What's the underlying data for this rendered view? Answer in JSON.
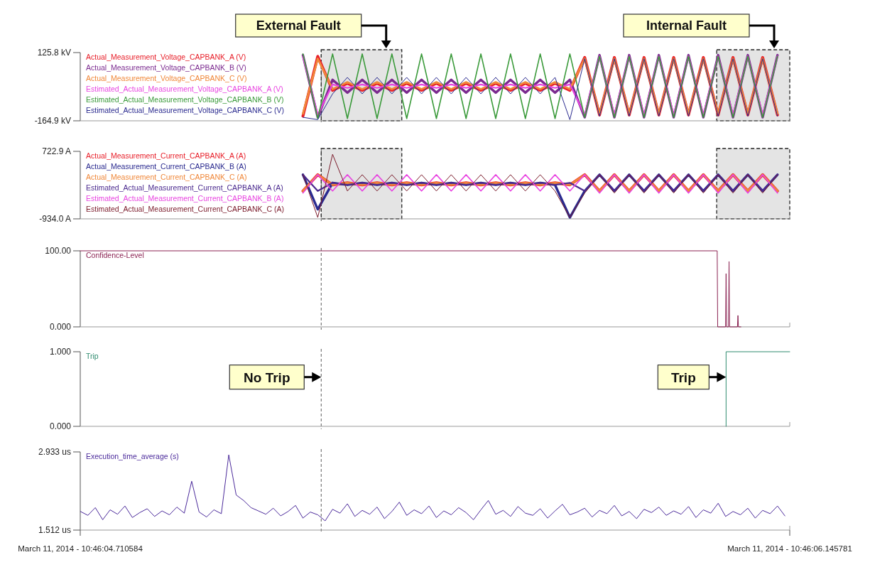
{
  "chart_data": [
    {
      "type": "line",
      "xlim": [
        "2014-03-11T10:46:04.710584",
        "2014-03-11T10:46:06.145781"
      ],
      "ylim": [
        -164.9,
        125.8
      ],
      "yticks": [
        {
          "value": 125.8,
          "label": "125.8 kV"
        },
        {
          "value": -164.9,
          "label": "-164.9 kV"
        }
      ],
      "tick_labels": "y",
      "legend": "top left",
      "x": [
        "2014-03-11T10:46:05.161",
        "2014-03-11T10:46:05.191",
        "2014-03-11T10:46:05.221",
        "2014-03-11T10:46:05.251",
        "2014-03-11T10:46:05.281",
        "2014-03-11T10:46:05.311",
        "2014-03-11T10:46:05.341",
        "2014-03-11T10:46:05.371",
        "2014-03-11T10:46:05.401",
        "2014-03-11T10:46:05.431",
        "2014-03-11T10:46:05.461",
        "2014-03-11T10:46:05.491",
        "2014-03-11T10:46:05.521",
        "2014-03-11T10:46:05.551",
        "2014-03-11T10:46:05.581",
        "2014-03-11T10:46:05.611",
        "2014-03-11T10:46:05.641",
        "2014-03-11T10:46:05.671",
        "2014-03-11T10:46:05.701",
        "2014-03-11T10:46:05.731",
        "2014-03-11T10:46:05.761",
        "2014-03-11T10:46:05.791",
        "2014-03-11T10:46:05.821",
        "2014-03-11T10:46:05.851",
        "2014-03-11T10:46:05.881",
        "2014-03-11T10:46:05.911",
        "2014-03-11T10:46:05.941",
        "2014-03-11T10:46:05.971",
        "2014-03-11T10:46:06.001",
        "2014-03-11T10:46:06.031",
        "2014-03-11T10:46:06.061",
        "2014-03-11T10:46:06.091",
        "2014-03-11T10:46:06.121"
      ],
      "series": [
        {
          "name": "Actual_Measurement_Voltage_CAPBANK_A (V)",
          "color": "#e8202a",
          "values": [
            -145,
            110,
            -35,
            -5,
            -35,
            -5,
            -35,
            -5,
            -35,
            -5,
            -35,
            -5,
            -35,
            -5,
            -35,
            -5,
            -35,
            -5,
            -35,
            105,
            -140,
            105,
            -140,
            105,
            -140,
            105,
            -140,
            105,
            -140,
            105,
            -140,
            105,
            -140
          ]
        },
        {
          "name": "Actual_Measurement_Voltage_CAPBANK_B (V)",
          "color": "#7b2a8f",
          "values": [
            115,
            -150,
            10,
            -45,
            10,
            -45,
            10,
            -45,
            10,
            -45,
            10,
            -45,
            10,
            -45,
            10,
            -45,
            10,
            -45,
            10,
            -150,
            115,
            -150,
            115,
            -150,
            115,
            -150,
            115,
            -150,
            115,
            -150,
            115,
            -150,
            115
          ]
        },
        {
          "name": "Actual_Measurement_Voltage_CAPBANK_C (V)",
          "color": "#f0883a",
          "values": [
            -135,
            100,
            -30,
            0,
            -30,
            0,
            -30,
            0,
            -30,
            0,
            -30,
            0,
            -30,
            0,
            -30,
            0,
            -30,
            0,
            -30,
            100,
            -135,
            100,
            -135,
            100,
            -135,
            100,
            -135,
            100,
            -135,
            100,
            -135,
            100,
            -135
          ]
        },
        {
          "name": "Estimated_Actual_Measurement_Voltage_CAPBANK_A (V)",
          "color": "#e845e0",
          "values": [
            110,
            -140,
            -10,
            -25,
            -10,
            -25,
            -10,
            -25,
            -10,
            -25,
            -10,
            -25,
            -10,
            -25,
            -10,
            -25,
            -10,
            -25,
            -10,
            -140,
            110,
            -140,
            110,
            -140,
            110,
            -140,
            110,
            -140,
            110,
            -140,
            110,
            -140,
            110
          ]
        },
        {
          "name": "Estimated_Actual_Measurement_Voltage_CAPBANK_B (V)",
          "color": "#3a9a3a",
          "values": [
            120,
            -155,
            120,
            -155,
            120,
            -155,
            120,
            -155,
            120,
            -155,
            120,
            -155,
            120,
            -155,
            120,
            -155,
            120,
            -155,
            120,
            -150,
            110,
            -150,
            110,
            -150,
            110,
            -150,
            110,
            -150,
            110,
            -150,
            110,
            -150,
            110
          ]
        },
        {
          "name": "Estimated_Actual_Measurement_Voltage_CAPBANK_C (V)",
          "color": "#2a2a8f",
          "values": [
            -150,
            -160,
            -50,
            20,
            -50,
            20,
            -50,
            20,
            -50,
            20,
            -50,
            20,
            -50,
            20,
            -50,
            20,
            -50,
            20,
            -160,
            100,
            -145,
            100,
            -145,
            100,
            -145,
            100,
            -145,
            100,
            -145,
            100,
            -145,
            100,
            -145
          ]
        }
      ],
      "bands": [
        {
          "axis": "x",
          "from": "2014-03-11T10:46:05.198",
          "to": "2014-03-11T10:46:05.361",
          "label": "External Fault"
        },
        {
          "axis": "x",
          "from": "2014-03-11T10:46:05.998",
          "to": "2014-03-11T10:46:06.145781",
          "label": "Internal Fault"
        }
      ],
      "ref_lines": [
        {
          "axis": "x",
          "value": "2014-03-11T10:46:05.198"
        }
      ]
    },
    {
      "type": "line",
      "xlim": [
        "2014-03-11T10:46:04.710584",
        "2014-03-11T10:46:06.145781"
      ],
      "ylim": [
        -934.0,
        722.9
      ],
      "yticks": [
        {
          "value": 722.9,
          "label": "722.9 A"
        },
        {
          "value": -934.0,
          "label": "-934.0 A"
        }
      ],
      "tick_labels": "y",
      "legend": "top left",
      "x": [
        "2014-03-11T10:46:05.161",
        "2014-03-11T10:46:05.191",
        "2014-03-11T10:46:05.221",
        "2014-03-11T10:46:05.251",
        "2014-03-11T10:46:05.281",
        "2014-03-11T10:46:05.311",
        "2014-03-11T10:46:05.341",
        "2014-03-11T10:46:05.371",
        "2014-03-11T10:46:05.401",
        "2014-03-11T10:46:05.431",
        "2014-03-11T10:46:05.461",
        "2014-03-11T10:46:05.491",
        "2014-03-11T10:46:05.521",
        "2014-03-11T10:46:05.551",
        "2014-03-11T10:46:05.581",
        "2014-03-11T10:46:05.611",
        "2014-03-11T10:46:05.641",
        "2014-03-11T10:46:05.671",
        "2014-03-11T10:46:05.701",
        "2014-03-11T10:46:05.731",
        "2014-03-11T10:46:05.761",
        "2014-03-11T10:46:05.791",
        "2014-03-11T10:46:05.821",
        "2014-03-11T10:46:05.851",
        "2014-03-11T10:46:05.881",
        "2014-03-11T10:46:05.911",
        "2014-03-11T10:46:05.941",
        "2014-03-11T10:46:05.971",
        "2014-03-11T10:46:06.001",
        "2014-03-11T10:46:06.031",
        "2014-03-11T10:46:06.061",
        "2014-03-11T10:46:06.091",
        "2014-03-11T10:46:06.121"
      ],
      "series": [
        {
          "name": "Actual_Measurement_Current_CAPBANK_A (A)",
          "color": "#e8202a",
          "values": [
            -250,
            150,
            -100,
            -50,
            -100,
            -50,
            -100,
            -50,
            -100,
            -50,
            -100,
            -50,
            -100,
            -50,
            -100,
            -50,
            -100,
            -50,
            -100,
            150,
            -250,
            150,
            -250,
            150,
            -250,
            150,
            -250,
            150,
            -250,
            150,
            -250,
            150,
            -250
          ]
        },
        {
          "name": "Actual_Measurement_Current_CAPBANK_B (A)",
          "color": "#2a2a8f",
          "values": [
            150,
            -700,
            -50,
            -100,
            -50,
            -100,
            -50,
            -100,
            -50,
            -100,
            -50,
            -100,
            -50,
            -100,
            -50,
            -100,
            -50,
            -100,
            -900,
            -250,
            150,
            -250,
            150,
            -250,
            150,
            -250,
            150,
            -250,
            150,
            -250,
            150,
            -250,
            150
          ]
        },
        {
          "name": "Actual_Measurement_Current_CAPBANK_C (A)",
          "color": "#f0883a",
          "values": [
            -250,
            150,
            -100,
            -50,
            -100,
            -50,
            -100,
            -50,
            -100,
            -50,
            -100,
            -50,
            -100,
            -50,
            -100,
            -50,
            -100,
            -50,
            -100,
            150,
            -250,
            150,
            -250,
            150,
            -250,
            150,
            -250,
            150,
            -250,
            150,
            -250,
            150,
            -250
          ]
        },
        {
          "name": "Estimated_Actual_Measurement_Current_CAPBANK_A (A)",
          "color": "#4b2a8f",
          "values": [
            150,
            -250,
            -50,
            -100,
            -50,
            -100,
            -50,
            -100,
            -50,
            -100,
            -50,
            -100,
            -50,
            -100,
            -50,
            -100,
            -50,
            -100,
            -50,
            -250,
            150,
            -250,
            150,
            -250,
            150,
            -250,
            150,
            -250,
            150,
            -250,
            150,
            -250,
            150
          ]
        },
        {
          "name": "Estimated_Actual_Measurement_Current_CAPBANK_B (A)",
          "color": "#e845e0",
          "values": [
            -300,
            150,
            -250,
            150,
            -250,
            150,
            -250,
            150,
            -250,
            150,
            -250,
            150,
            -250,
            150,
            -250,
            150,
            -250,
            150,
            -250,
            150,
            -300,
            150,
            -300,
            150,
            -300,
            150,
            -300,
            150,
            -300,
            150,
            -300,
            150,
            -300
          ]
        },
        {
          "name": "Estimated_Actual_Measurement_Current_CAPBANK_C (A)",
          "color": "#7a1a2a",
          "values": [
            150,
            -900,
            650,
            -250,
            150,
            -250,
            150,
            -250,
            150,
            -250,
            150,
            -250,
            150,
            -250,
            150,
            -250,
            150,
            -250,
            -900,
            -300,
            150,
            -300,
            150,
            -300,
            150,
            -300,
            150,
            -300,
            150,
            -300,
            150,
            -300,
            150
          ]
        }
      ],
      "bands": [
        {
          "axis": "x",
          "from": "2014-03-11T10:46:05.198",
          "to": "2014-03-11T10:46:05.361"
        },
        {
          "axis": "x",
          "from": "2014-03-11T10:46:05.998",
          "to": "2014-03-11T10:46:06.145781"
        }
      ],
      "ref_lines": [
        {
          "axis": "x",
          "value": "2014-03-11T10:46:05.198"
        }
      ]
    },
    {
      "type": "line",
      "xlim": [
        "2014-03-11T10:46:04.710584",
        "2014-03-11T10:46:06.145781"
      ],
      "ylim": [
        0,
        100
      ],
      "yticks": [
        {
          "value": 100,
          "label": "100.00"
        },
        {
          "value": 0,
          "label": "0.000"
        }
      ],
      "tick_labels": "y",
      "legend": "top left",
      "series": [
        {
          "name": "Confidence-Level",
          "color": "#8b2252",
          "x": [
            "2014-03-11T10:46:04.710584",
            "2014-03-11T10:46:05.999",
            "2014-03-11T10:46:06.000",
            "2014-03-11T10:46:06.016",
            "2014-03-11T10:46:06.017",
            "2014-03-11T10:46:06.018",
            "2014-03-11T10:46:06.022",
            "2014-03-11T10:46:06.023",
            "2014-03-11T10:46:06.024",
            "2014-03-11T10:46:06.040",
            "2014-03-11T10:46:06.041",
            "2014-03-11T10:46:06.042",
            "2014-03-11T10:46:06.047"
          ],
          "values": [
            100,
            100,
            0,
            0,
            70,
            0,
            0,
            86,
            0,
            0,
            15,
            0,
            0
          ]
        }
      ],
      "ref_lines": [
        {
          "axis": "x",
          "value": "2014-03-11T10:46:05.198"
        }
      ]
    },
    {
      "type": "line",
      "xlim": [
        "2014-03-11T10:46:04.710584",
        "2014-03-11T10:46:06.145781"
      ],
      "ylim": [
        0,
        1
      ],
      "yticks": [
        {
          "value": 1,
          "label": "1.000"
        },
        {
          "value": 0,
          "label": "0.000"
        }
      ],
      "tick_labels": "y",
      "legend": "top left",
      "series": [
        {
          "name": "Trip",
          "color": "#2e8b6e",
          "x": [
            "2014-03-11T10:46:06.017",
            "2014-03-11T10:46:06.017",
            "2014-03-11T10:46:06.145781"
          ],
          "values": [
            0,
            1,
            1
          ]
        }
      ],
      "ref_lines": [
        {
          "axis": "x",
          "value": "2014-03-11T10:46:05.198"
        }
      ],
      "annotations": [
        {
          "text": "No Trip",
          "x": "2014-03-11T10:46:05.198",
          "y": 0.66
        },
        {
          "text": "Trip",
          "x": "2014-03-11T10:46:06.017",
          "y": 0.66
        }
      ]
    },
    {
      "type": "line",
      "xlim": [
        "2014-03-11T10:46:04.710584",
        "2014-03-11T10:46:06.145781"
      ],
      "ylim": [
        1.512,
        2.933
      ],
      "yticks": [
        {
          "value": 2.933,
          "label": "2.933 us"
        },
        {
          "value": 1.512,
          "label": "1.512 us"
        }
      ],
      "xticks": [
        {
          "value": "2014-03-11T10:46:04.710584",
          "label": "March 11, 2014 - 10:46:04.710584"
        },
        {
          "value": "2014-03-11T10:46:06.145781",
          "label": "March 11, 2014 - 10:46:06.145781"
        }
      ],
      "legend": "top left",
      "x": [
        "2014-03-11T10:46:04.711",
        "2014-03-11T10:46:04.726",
        "2014-03-11T10:46:04.741",
        "2014-03-11T10:46:04.756",
        "2014-03-11T10:46:04.771",
        "2014-03-11T10:46:04.786",
        "2014-03-11T10:46:04.801",
        "2014-03-11T10:46:04.816",
        "2014-03-11T10:46:04.831",
        "2014-03-11T10:46:04.846",
        "2014-03-11T10:46:04.861",
        "2014-03-11T10:46:04.876",
        "2014-03-11T10:46:04.891",
        "2014-03-11T10:46:04.906",
        "2014-03-11T10:46:04.921",
        "2014-03-11T10:46:04.936",
        "2014-03-11T10:46:04.951",
        "2014-03-11T10:46:04.966",
        "2014-03-11T10:46:04.981",
        "2014-03-11T10:46:04.996",
        "2014-03-11T10:46:05.011",
        "2014-03-11T10:46:05.026",
        "2014-03-11T10:46:05.041",
        "2014-03-11T10:46:05.056",
        "2014-03-11T10:46:05.071",
        "2014-03-11T10:46:05.086",
        "2014-03-11T10:46:05.101",
        "2014-03-11T10:46:05.116",
        "2014-03-11T10:46:05.131",
        "2014-03-11T10:46:05.146",
        "2014-03-11T10:46:05.161",
        "2014-03-11T10:46:05.176",
        "2014-03-11T10:46:05.191",
        "2014-03-11T10:46:05.206",
        "2014-03-11T10:46:05.221",
        "2014-03-11T10:46:05.236",
        "2014-03-11T10:46:05.251",
        "2014-03-11T10:46:05.266",
        "2014-03-11T10:46:05.281",
        "2014-03-11T10:46:05.296",
        "2014-03-11T10:46:05.311",
        "2014-03-11T10:46:05.326",
        "2014-03-11T10:46:05.341",
        "2014-03-11T10:46:05.356",
        "2014-03-11T10:46:05.371",
        "2014-03-11T10:46:05.386",
        "2014-03-11T10:46:05.401",
        "2014-03-11T10:46:05.416",
        "2014-03-11T10:46:05.431",
        "2014-03-11T10:46:05.446",
        "2014-03-11T10:46:05.461",
        "2014-03-11T10:46:05.476",
        "2014-03-11T10:46:05.491",
        "2014-03-11T10:46:05.506",
        "2014-03-11T10:46:05.521",
        "2014-03-11T10:46:05.536",
        "2014-03-11T10:46:05.551",
        "2014-03-11T10:46:05.566",
        "2014-03-11T10:46:05.581",
        "2014-03-11T10:46:05.596",
        "2014-03-11T10:46:05.611",
        "2014-03-11T10:46:05.626",
        "2014-03-11T10:46:05.641",
        "2014-03-11T10:46:05.656",
        "2014-03-11T10:46:05.671",
        "2014-03-11T10:46:05.686",
        "2014-03-11T10:46:05.701",
        "2014-03-11T10:46:05.716",
        "2014-03-11T10:46:05.731",
        "2014-03-11T10:46:05.746",
        "2014-03-11T10:46:05.761",
        "2014-03-11T10:46:05.776",
        "2014-03-11T10:46:05.791",
        "2014-03-11T10:46:05.806",
        "2014-03-11T10:46:05.821",
        "2014-03-11T10:46:05.836",
        "2014-03-11T10:46:05.851",
        "2014-03-11T10:46:05.866",
        "2014-03-11T10:46:05.881",
        "2014-03-11T10:46:05.896",
        "2014-03-11T10:46:05.911",
        "2014-03-11T10:46:05.926",
        "2014-03-11T10:46:05.941",
        "2014-03-11T10:46:05.956",
        "2014-03-11T10:46:05.971",
        "2014-03-11T10:46:05.986",
        "2014-03-11T10:46:06.001",
        "2014-03-11T10:46:06.016",
        "2014-03-11T10:46:06.031",
        "2014-03-11T10:46:06.046",
        "2014-03-11T10:46:06.061",
        "2014-03-11T10:46:06.076",
        "2014-03-11T10:46:06.091",
        "2014-03-11T10:46:06.106",
        "2014-03-11T10:46:06.121",
        "2014-03-11T10:46:06.136"
      ],
      "series": [
        {
          "name": "Execution_time_average (s)",
          "color": "#4b2a9b",
          "values": [
            1.85,
            1.78,
            1.92,
            1.7,
            1.88,
            1.8,
            1.95,
            1.74,
            1.83,
            1.9,
            1.76,
            1.86,
            1.79,
            1.93,
            1.82,
            2.4,
            1.84,
            1.75,
            1.88,
            1.81,
            2.88,
            2.15,
            2.05,
            1.92,
            1.86,
            1.8,
            1.91,
            1.77,
            1.85,
            1.96,
            1.73,
            1.84,
            1.79,
            1.68,
            1.89,
            1.82,
            1.99,
            1.76,
            1.87,
            1.8,
            1.93,
            1.72,
            1.85,
            2.02,
            1.78,
            1.88,
            1.81,
            1.95,
            1.74,
            1.86,
            1.79,
            1.92,
            1.83,
            1.7,
            1.88,
            2.05,
            1.8,
            1.87,
            1.76,
            1.94,
            1.82,
            1.78,
            1.9,
            1.73,
            1.86,
            1.98,
            1.79,
            1.84,
            1.91,
            1.75,
            1.87,
            1.81,
            1.96,
            1.77,
            1.85,
            1.72,
            1.89,
            1.83,
            1.93,
            1.78,
            1.86,
            1.8,
            1.94,
            1.74,
            1.88,
            1.82,
            2.0,
            1.76,
            1.85,
            1.79,
            1.91,
            1.73,
            1.87,
            1.81,
            1.95,
            1.77
          ]
        }
      ],
      "ref_lines": [
        {
          "axis": "x",
          "value": "2014-03-11T10:46:05.198"
        }
      ]
    }
  ]
}
